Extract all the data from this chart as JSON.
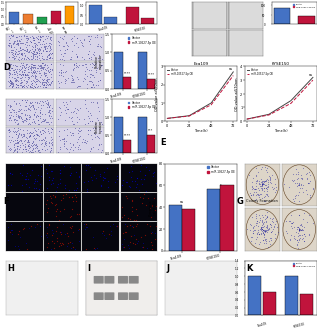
{
  "background": "#ffffff",
  "colors": {
    "blue": "#4472c4",
    "red": "#c0143c",
    "micro_bg": "#d4cce8",
    "micro_dot": "#5050a0",
    "wound_bg": "#c8c8c8",
    "fluor_bg": "#06060e",
    "fluor_red": "#cc2200",
    "fluor_blue": "#0000cc",
    "colony_bg": "#e0d8d0",
    "colony_dot": "#3030a0",
    "western_bg": "#e8e8e8"
  },
  "migration_bars": {
    "categories": [
      "Eca109",
      "KYSE150"
    ],
    "vector": [
      1.0,
      1.0
    ],
    "mir_oe": [
      0.32,
      0.28
    ],
    "ylim": [
      0,
      1.5
    ],
    "yticks": [
      0.0,
      0.5,
      1.0,
      1.5
    ]
  },
  "invasion_bars": {
    "categories": [
      "Eca109",
      "KYSE150"
    ],
    "vector": [
      1.0,
      1.0
    ],
    "mir_oe": [
      0.38,
      0.52
    ],
    "ylim": [
      0,
      1.5
    ],
    "yticks": [
      0.0,
      0.5,
      1.0,
      1.5
    ]
  },
  "wound_bar": {
    "vector": 88,
    "mir_oe": 42,
    "ylim": [
      0,
      120
    ],
    "yticks": [
      0,
      40,
      80,
      120
    ]
  },
  "prolif_eca": {
    "time": [
      0,
      24,
      48,
      72
    ],
    "vector": [
      0.15,
      0.3,
      1.0,
      2.7
    ],
    "mir_oe": [
      0.15,
      0.28,
      0.9,
      2.5
    ],
    "ylim": [
      0,
      3
    ],
    "yticks": [
      0,
      1,
      2,
      3
    ]
  },
  "prolif_kyse": {
    "time": [
      0,
      24,
      48,
      72
    ],
    "vector": [
      0.15,
      0.5,
      1.5,
      3.2
    ],
    "mir_oe": [
      0.15,
      0.45,
      1.3,
      3.0
    ],
    "ylim": [
      0,
      4
    ],
    "yticks": [
      0,
      1,
      2,
      3,
      4
    ]
  },
  "pyroptosis_bars": {
    "categories": [
      "Eca109",
      "KYSE150"
    ],
    "vector": [
      42,
      57
    ],
    "mir_oe": [
      38,
      60
    ],
    "ylim": [
      0,
      80
    ],
    "yticks": [
      0,
      20,
      40,
      60,
      80
    ]
  },
  "legend": {
    "vector_label": "Vector",
    "mir_label": "miR-10527-5p OE"
  }
}
